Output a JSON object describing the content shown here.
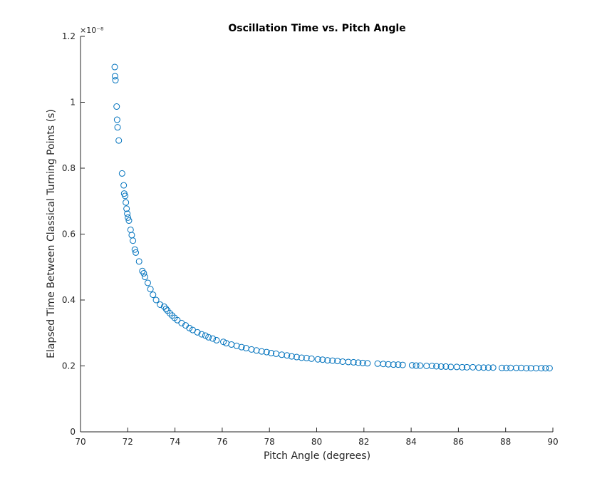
{
  "chart_data": {
    "type": "scatter",
    "title": "Oscillation Time vs. Pitch Angle",
    "xlabel": "Pitch Angle (degrees)",
    "ylabel": "Elapsed Time Between Classical Turning Points (s)",
    "xlim": [
      70,
      90
    ],
    "ylim": [
      0,
      1.2
    ],
    "y_exponent": "×10⁻⁸",
    "xticks": [
      70,
      72,
      74,
      76,
      78,
      80,
      82,
      84,
      86,
      88,
      90
    ],
    "xtick_labels": [
      "70",
      "72",
      "74",
      "76",
      "78",
      "80",
      "82",
      "84",
      "86",
      "88",
      "90"
    ],
    "yticks": [
      0,
      0.2,
      0.4,
      0.6,
      0.8,
      1.0,
      1.2
    ],
    "ytick_labels": [
      "0",
      "0.2",
      "0.4",
      "0.6",
      "0.8",
      "1",
      "1.2"
    ],
    "grid": false,
    "marker": "open-circle",
    "color": "#0072BD",
    "series": [
      {
        "x": [
          71.45,
          71.46,
          71.48,
          71.53,
          71.55,
          71.57,
          71.62,
          71.76,
          71.83,
          71.85,
          71.89,
          71.92,
          71.95,
          71.98,
          72.01,
          72.05,
          72.12,
          72.17,
          72.22,
          72.3,
          72.34,
          72.48,
          72.62,
          72.68,
          72.73,
          72.85,
          72.96,
          73.07,
          73.2,
          73.37,
          73.54,
          73.62,
          73.68,
          73.78,
          73.88,
          73.98,
          74.1,
          74.28,
          74.45,
          74.61,
          74.75,
          74.95,
          75.13,
          75.29,
          75.42,
          75.6,
          75.76,
          76.05,
          76.17,
          76.39,
          76.61,
          76.82,
          77.01,
          77.24,
          77.45,
          77.67,
          77.88,
          78.07,
          78.28,
          78.52,
          78.74,
          78.94,
          79.15,
          79.36,
          79.57,
          79.78,
          80.05,
          80.25,
          80.46,
          80.67,
          80.88,
          81.1,
          81.34,
          81.56,
          81.76,
          81.95,
          82.15,
          82.58,
          82.82,
          83.03,
          83.25,
          83.45,
          83.64,
          84.04,
          84.21,
          84.38,
          84.65,
          84.88,
          85.07,
          85.27,
          85.47,
          85.68,
          85.93,
          86.16,
          86.36,
          86.61,
          86.86,
          87.07,
          87.27,
          87.47,
          87.84,
          88.03,
          88.21,
          88.45,
          88.66,
          88.88,
          89.07,
          89.29,
          89.51,
          89.69,
          89.86
        ],
        "y": [
          1.107,
          1.079,
          1.067,
          0.987,
          0.947,
          0.924,
          0.884,
          0.784,
          0.748,
          0.723,
          0.716,
          0.696,
          0.677,
          0.662,
          0.65,
          0.641,
          0.613,
          0.597,
          0.58,
          0.553,
          0.544,
          0.517,
          0.488,
          0.481,
          0.47,
          0.452,
          0.433,
          0.416,
          0.4,
          0.386,
          0.38,
          0.373,
          0.368,
          0.36,
          0.353,
          0.346,
          0.339,
          0.33,
          0.323,
          0.315,
          0.309,
          0.302,
          0.296,
          0.292,
          0.287,
          0.283,
          0.278,
          0.273,
          0.269,
          0.265,
          0.261,
          0.257,
          0.254,
          0.25,
          0.247,
          0.244,
          0.242,
          0.239,
          0.237,
          0.234,
          0.232,
          0.229,
          0.227,
          0.225,
          0.224,
          0.222,
          0.22,
          0.219,
          0.217,
          0.216,
          0.215,
          0.213,
          0.212,
          0.211,
          0.21,
          0.209,
          0.208,
          0.207,
          0.206,
          0.205,
          0.204,
          0.204,
          0.203,
          0.202,
          0.201,
          0.201,
          0.2,
          0.2,
          0.199,
          0.198,
          0.198,
          0.197,
          0.197,
          0.196,
          0.196,
          0.196,
          0.195,
          0.195,
          0.195,
          0.195,
          0.194,
          0.194,
          0.194,
          0.194,
          0.194,
          0.193,
          0.193,
          0.193,
          0.193,
          0.193,
          0.193
        ]
      }
    ]
  }
}
